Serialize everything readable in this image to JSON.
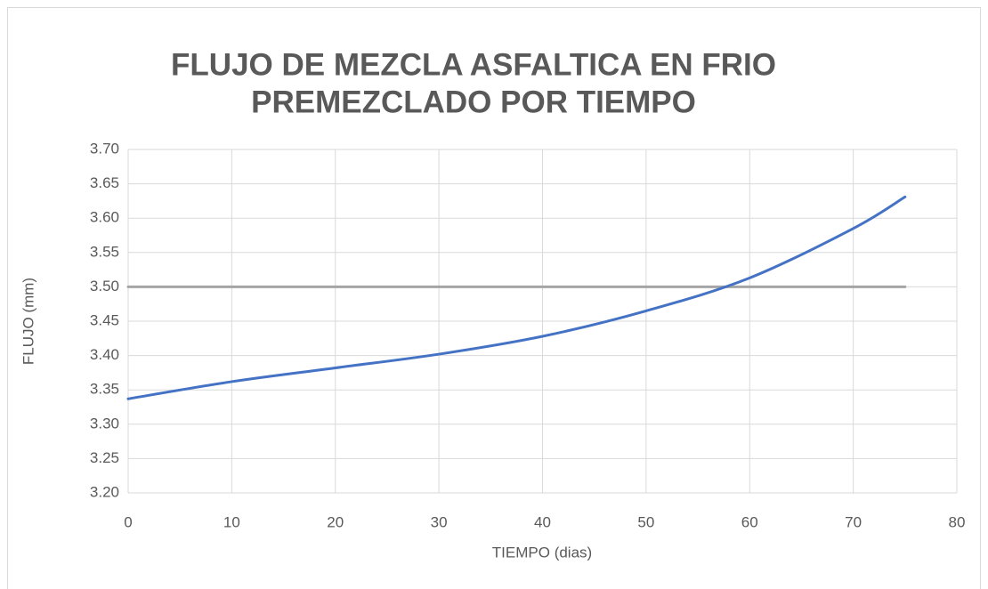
{
  "chart_data": {
    "type": "line",
    "title": [
      "FLUJO DE MEZCLA ASFALTICA EN FRIO",
      "PREMEZCLADO POR TIEMPO"
    ],
    "xlabel": "TIEMPO (dias)",
    "ylabel": "FLUJO (mm)",
    "x": [
      0,
      10,
      20,
      30,
      40,
      50,
      60,
      70,
      75
    ],
    "series": [
      {
        "color": "#4472c4",
        "values": [
          3.337,
          3.362,
          3.382,
          3.402,
          3.428,
          3.465,
          3.513,
          3.585,
          3.631
        ]
      },
      {
        "color": "#a5a5a5",
        "values": [
          3.5,
          3.5,
          3.5,
          3.5,
          3.5,
          3.5,
          3.5,
          3.5,
          3.5
        ]
      }
    ],
    "xlim": [
      0,
      80
    ],
    "xticks": [
      0,
      10,
      20,
      30,
      40,
      50,
      60,
      70,
      80
    ],
    "ylim": [
      3.2,
      3.7
    ],
    "yticks": [
      {
        "value": 3.2,
        "label": "3.20"
      },
      {
        "value": 3.25,
        "label": "3.25"
      },
      {
        "value": 3.3,
        "label": "3.30"
      },
      {
        "value": 3.35,
        "label": "3.35"
      },
      {
        "value": 3.4,
        "label": "3.40"
      },
      {
        "value": 3.45,
        "label": "3.45"
      },
      {
        "value": 3.5,
        "label": "3.50"
      },
      {
        "value": 3.55,
        "label": "3.55"
      },
      {
        "value": 3.6,
        "label": "3.60"
      },
      {
        "value": 3.65,
        "label": "3.65"
      },
      {
        "value": 3.7,
        "label": "3.70"
      }
    ],
    "grid": true
  }
}
